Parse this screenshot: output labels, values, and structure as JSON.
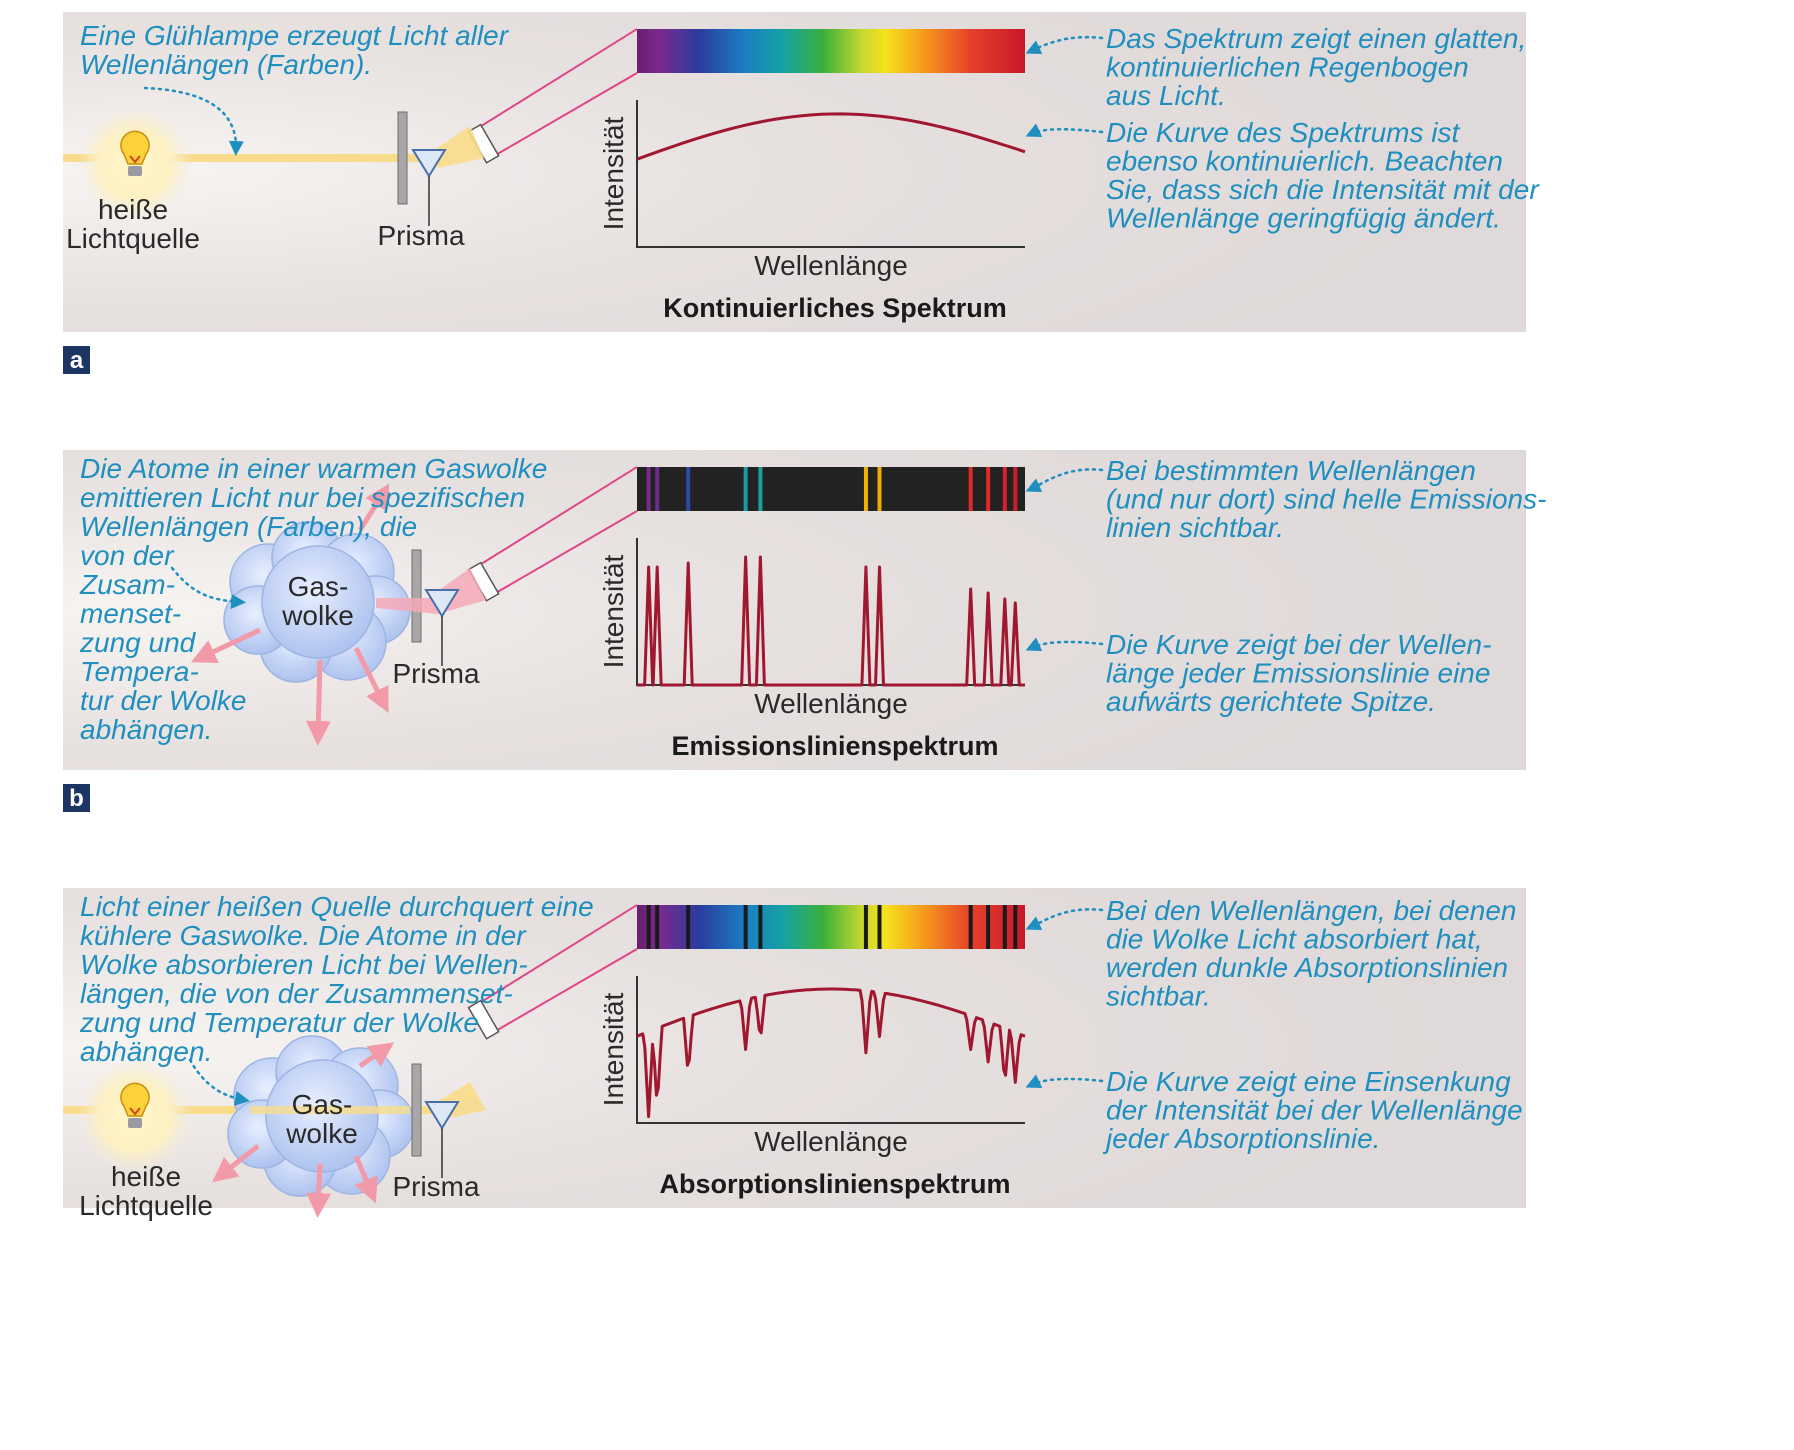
{
  "colors": {
    "panel_bg": "#e3dddd",
    "annotation": "#1f8fc0",
    "curve": "#a01830",
    "light_beam": "#f8dc8a",
    "spectrum_beam": "#e0458a",
    "tag_bg": "#1c3563"
  },
  "panels": [
    {
      "id": "a",
      "tag": "a",
      "type": "continuous",
      "title": "Kontinuierliches Spektrum",
      "left_note": [
        "Eine Glühlampe erzeugt Licht aller",
        "Wellenlängen (Farben)."
      ],
      "source_label": [
        "heiße",
        "Lichtquelle"
      ],
      "prism_label": "Prisma",
      "x_label": "Wellenlänge",
      "y_label": "Intensität",
      "right_notes": [
        [
          "Das Spektrum zeigt einen glatten,",
          "kontinuierlichen Regenbogen",
          "aus Licht."
        ],
        [
          "Die Kurve des Spektrums ist",
          "ebenso kontinuierlich. Beachten",
          "Sie, dass sich die Intensität mit der",
          "Wellenlänge geringfügig ändert."
        ]
      ],
      "icons": [
        "light-bulb-icon",
        "prism-icon"
      ]
    },
    {
      "id": "b",
      "tag": "b",
      "type": "emission",
      "title": "Emissionslinienspektrum",
      "left_note": [
        "Die Atome in einer warmen Gaswolke",
        "emittieren Licht nur bei spezifischen",
        "Wellenlängen (Farben), die",
        "von der",
        "Zusam-",
        "menset-",
        "zung und",
        "Tempera-",
        "tur der Wolke",
        "abhängen."
      ],
      "cloud_label": [
        "Gas-",
        "wolke"
      ],
      "prism_label": "Prisma",
      "x_label": "Wellenlänge",
      "y_label": "Intensität",
      "right_notes": [
        [
          "Bei bestimmten Wellenlängen",
          "(und nur dort) sind helle Emissions-",
          "linien sichtbar."
        ],
        [
          "Die Kurve zeigt bei der Wellen-",
          "länge jeder Emissionslinie eine",
          "aufwärts gerichtete Spitze."
        ]
      ],
      "icons": [
        "gas-cloud-icon",
        "prism-icon"
      ]
    },
    {
      "id": "c",
      "tag": "",
      "type": "absorption",
      "title": "Absorptionslinienspektrum",
      "left_note": [
        "Licht einer heißen Quelle durchquert eine",
        "kühlere Gaswolke. Die Atome in der",
        "Wolke absorbieren Licht bei Wellen-",
        "längen, die von der Zusammenset-",
        "zung und Temperatur der Wolke",
        "abhängen."
      ],
      "source_label": [
        "heiße",
        "Lichtquelle"
      ],
      "cloud_label": [
        "Gas-",
        "wolke"
      ],
      "prism_label": "Prisma",
      "x_label": "Wellenlänge",
      "y_label": "Intensität",
      "right_notes": [
        [
          "Bei den Wellenlängen, bei denen",
          "die Wolke Licht absorbiert hat,",
          "werden dunkle Absorptionslinien",
          "sichtbar."
        ],
        [
          "Die Kurve zeigt eine Einsenkung",
          "der Intensität bei der Wellenlänge",
          "jeder Absorptionslinie."
        ]
      ],
      "icons": [
        "light-bulb-icon",
        "gas-cloud-icon",
        "prism-icon"
      ]
    }
  ],
  "spectral_lines": {
    "positions": [
      0.03,
      0.052,
      0.132,
      0.28,
      0.318,
      0.59,
      0.625,
      0.86,
      0.905,
      0.948,
      0.975
    ],
    "colors": [
      "#7a2a8c",
      "#6a2c8a",
      "#2c4aa8",
      "#1a9aa6",
      "#1aa0a0",
      "#f0b400",
      "#f0aa00",
      "#e02a2a",
      "#e02a2a",
      "#d8202a",
      "#d01c28"
    ]
  }
}
